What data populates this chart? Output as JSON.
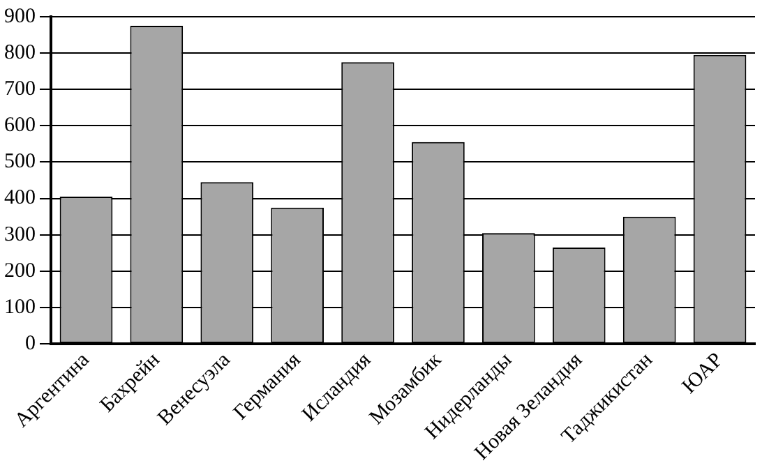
{
  "chart_data": {
    "type": "bar",
    "categories": [
      "Аргентина",
      "Бахрейн",
      "Венесуэла",
      "Германия",
      "Исландия",
      "Мозамбик",
      "Нидерланды",
      "Новая Зеландия",
      "Таджикистан",
      "ЮАР"
    ],
    "values": [
      405,
      875,
      445,
      375,
      775,
      555,
      305,
      265,
      350,
      795
    ],
    "color": "#a6a6a6",
    "ylim": [
      0,
      900
    ],
    "yticks": [
      0,
      100,
      200,
      300,
      400,
      500,
      600,
      700,
      800,
      900
    ],
    "grid": "y"
  }
}
